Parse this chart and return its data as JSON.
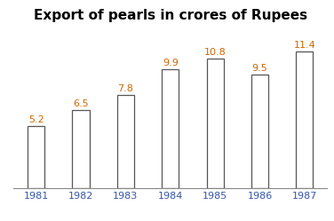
{
  "title": "Export of pearls in crores of Rupees",
  "categories": [
    "1981",
    "1982",
    "1983",
    "1984",
    "1985",
    "1986",
    "1987"
  ],
  "values": [
    5.2,
    6.5,
    7.8,
    9.9,
    10.8,
    9.5,
    11.4
  ],
  "bar_color": "#ffffff",
  "bar_edge_color": "#555555",
  "label_color": "#cc6600",
  "tick_label_color": "#3355aa",
  "title_fontsize": 11,
  "label_fontsize": 8,
  "tick_fontsize": 8,
  "ylim": [
    0,
    13.5
  ],
  "bar_width": 0.38,
  "background_color": "#ffffff"
}
